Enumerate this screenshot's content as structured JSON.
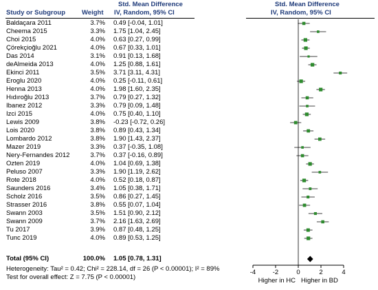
{
  "header": {
    "effect_title_left": "Std. Mean Difference",
    "effect_subtitle_left": "IV, Random, 95% CI",
    "effect_title_right": "Std. Mean Difference",
    "effect_subtitle_right": "IV, Random, 95% CI",
    "col_study": "Study or Subgroup",
    "col_weight": "Weight"
  },
  "total": {
    "label": "Total (95% CI)",
    "weight": "100.0%",
    "ci_text": "1.05 [0.78, 1.31]"
  },
  "footer": {
    "heterogeneity": "Heterogeneity: Tau² = 0.42; Chi² = 228.14, df = 26 (P < 0.00001); I² = 89%",
    "overall": "Test for overall effect: Z = 7.75 (P < 0.00001)"
  },
  "axis": {
    "left_label": "Higher in HC",
    "right_label": "Higher in BD"
  },
  "colors": {
    "header_text": "#1f3b7a",
    "study_marker": "#2e8b2e",
    "ci_line": "#000000",
    "diamond": "#000000"
  },
  "chart_data": {
    "type": "forest",
    "xlim": [
      -4,
      4
    ],
    "xticks": [
      -4,
      -2,
      0,
      2,
      4
    ],
    "studies": [
      {
        "name": "Baldaçara 2011",
        "weight": "3.7%",
        "ci_text": "0.49 [-0.04, 1.01]",
        "smd": 0.49,
        "lower": -0.04,
        "upper": 1.01
      },
      {
        "name": "Cheema 2015",
        "weight": "3.3%",
        "ci_text": "1.75 [1.04, 2.45]",
        "smd": 1.75,
        "lower": 1.04,
        "upper": 2.45
      },
      {
        "name": "Choi 2015",
        "weight": "4.0%",
        "ci_text": "0.63 [0.27, 0.99]",
        "smd": 0.63,
        "lower": 0.27,
        "upper": 0.99
      },
      {
        "name": "Çörekçioğlu 2021",
        "weight": "4.0%",
        "ci_text": "0.67 [0.33, 1.01]",
        "smd": 0.67,
        "lower": 0.33,
        "upper": 1.01
      },
      {
        "name": "Das 2014",
        "weight": "3.1%",
        "ci_text": "0.91 [0.13, 1.68]",
        "smd": 0.91,
        "lower": 0.13,
        "upper": 1.68
      },
      {
        "name": "deAlmeida 2013",
        "weight": "4.0%",
        "ci_text": "1.25 [0.88, 1.61]",
        "smd": 1.25,
        "lower": 0.88,
        "upper": 1.61
      },
      {
        "name": "Ekinci 2011",
        "weight": "3.5%",
        "ci_text": "3.71 [3.11, 4.31]",
        "smd": 3.71,
        "lower": 3.11,
        "upper": 4.31
      },
      {
        "name": "Eroglu 2020",
        "weight": "4.0%",
        "ci_text": "0.25 [-0.11, 0.61]",
        "smd": 0.25,
        "lower": -0.11,
        "upper": 0.61
      },
      {
        "name": "Henna 2013",
        "weight": "4.0%",
        "ci_text": "1.98 [1.60, 2.35]",
        "smd": 1.98,
        "lower": 1.6,
        "upper": 2.35
      },
      {
        "name": "Hıdıroğlu 2013",
        "weight": "3.7%",
        "ci_text": "0.79 [0.27, 1.32]",
        "smd": 0.79,
        "lower": 0.27,
        "upper": 1.32
      },
      {
        "name": "Ibanez 2012",
        "weight": "3.3%",
        "ci_text": "0.79 [0.09, 1.48]",
        "smd": 0.79,
        "lower": 0.09,
        "upper": 1.48
      },
      {
        "name": "Izci 2015",
        "weight": "4.0%",
        "ci_text": "0.75 [0.40, 1.10]",
        "smd": 0.75,
        "lower": 0.4,
        "upper": 1.1
      },
      {
        "name": "Lewis 2009",
        "weight": "3.8%",
        "ci_text": "-0.23 [-0.72, 0.26]",
        "smd": -0.23,
        "lower": -0.72,
        "upper": 0.26
      },
      {
        "name": "Lois 2020",
        "weight": "3.8%",
        "ci_text": "0.89 [0.43, 1.34]",
        "smd": 0.89,
        "lower": 0.43,
        "upper": 1.34
      },
      {
        "name": "Lombardo 2012",
        "weight": "3.8%",
        "ci_text": "1.90 [1.43, 2.37]",
        "smd": 1.9,
        "lower": 1.43,
        "upper": 2.37
      },
      {
        "name": "Mazer 2019",
        "weight": "3.3%",
        "ci_text": "0.37 [-0.35, 1.08]",
        "smd": 0.37,
        "lower": -0.35,
        "upper": 1.08
      },
      {
        "name": "Nery-Fernandes 2012",
        "weight": "3.7%",
        "ci_text": "0.37 [-0.16, 0.89]",
        "smd": 0.37,
        "lower": -0.16,
        "upper": 0.89
      },
      {
        "name": "Ozten 2019",
        "weight": "4.0%",
        "ci_text": "1.04 [0.69, 1.38]",
        "smd": 1.04,
        "lower": 0.69,
        "upper": 1.38
      },
      {
        "name": "Peluso 2007",
        "weight": "3.3%",
        "ci_text": "1.90 [1.19, 2.62]",
        "smd": 1.9,
        "lower": 1.19,
        "upper": 2.62
      },
      {
        "name": "Rote 2018",
        "weight": "4.0%",
        "ci_text": "0.52 [0.18, 0.87]",
        "smd": 0.52,
        "lower": 0.18,
        "upper": 0.87
      },
      {
        "name": "Saunders 2016",
        "weight": "3.4%",
        "ci_text": "1.05 [0.38, 1.71]",
        "smd": 1.05,
        "lower": 0.38,
        "upper": 1.71
      },
      {
        "name": "Scholz 2016",
        "weight": "3.5%",
        "ci_text": "0.86 [0.27, 1.45]",
        "smd": 0.86,
        "lower": 0.27,
        "upper": 1.45
      },
      {
        "name": "Strasser 2016",
        "weight": "3.8%",
        "ci_text": "0.55 [0.07, 1.04]",
        "smd": 0.55,
        "lower": 0.07,
        "upper": 1.04
      },
      {
        "name": "Swann 2003",
        "weight": "3.5%",
        "ci_text": "1.51 [0.90, 2.12]",
        "smd": 1.51,
        "lower": 0.9,
        "upper": 2.12
      },
      {
        "name": "Swann 2009",
        "weight": "3.7%",
        "ci_text": "2.16 [1.63, 2.69]",
        "smd": 2.16,
        "lower": 1.63,
        "upper": 2.69
      },
      {
        "name": "Tu 2017",
        "weight": "3.9%",
        "ci_text": "0.87 [0.48, 1.25]",
        "smd": 0.87,
        "lower": 0.48,
        "upper": 1.25
      },
      {
        "name": "Tunc 2019",
        "weight": "4.0%",
        "ci_text": "0.89 [0.53, 1.25]",
        "smd": 0.89,
        "lower": 0.53,
        "upper": 1.25
      }
    ],
    "pooled": {
      "smd": 1.05,
      "lower": 0.78,
      "upper": 1.31
    }
  }
}
